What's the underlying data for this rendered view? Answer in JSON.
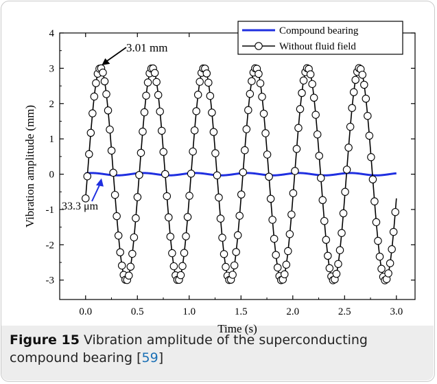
{
  "figure": {
    "label": "Figure 15",
    "caption": "Vibration amplitude of the superconducting compound bearing",
    "ref_open": "[",
    "ref_num": "59",
    "ref_close": "]"
  },
  "chart_data": {
    "type": "line",
    "xlabel": "Time (s)",
    "ylabel": "Vibration amplitude (mm)",
    "xlim": [
      -0.25,
      3.18
    ],
    "ylim": [
      -3.55,
      4.0
    ],
    "xticks": [
      0.0,
      0.5,
      1.0,
      1.5,
      2.0,
      2.5,
      3.0
    ],
    "xtick_labels": [
      "0.0",
      "0.5",
      "1.0",
      "1.5",
      "2.0",
      "2.5",
      "3.0"
    ],
    "yticks": [
      -3,
      -2,
      -1,
      0,
      1,
      2,
      3,
      4
    ],
    "ytick_labels": [
      "-3",
      "-2",
      "-1",
      "0",
      "1",
      "2",
      "3",
      "4"
    ],
    "legend_position": "top-right",
    "series": [
      {
        "name": "Compound bearing",
        "color": "#1f2fe0",
        "style": "line",
        "amplitude_mm": 0.0333,
        "frequency_hz": 2.0,
        "phase_rad": 0.85,
        "x_range": [
          0.0,
          3.0
        ]
      },
      {
        "name": "Without fluid field",
        "color": "#000000",
        "style": "line-with-open-circles",
        "amplitude_mm": 3.01,
        "frequency_hz": 2.0,
        "phase_rad": -0.23,
        "x_range": [
          0.0,
          3.0
        ],
        "sample_step_s": 0.0167
      }
    ],
    "annotations": [
      {
        "text": "3.01 mm",
        "color": "#000000",
        "points_to_x": 0.13,
        "points_to_y": 3.01
      },
      {
        "text": "33.3 μm",
        "color": "#1f2fe0",
        "points_to_x": 0.18,
        "points_to_y": 0.0
      }
    ]
  }
}
